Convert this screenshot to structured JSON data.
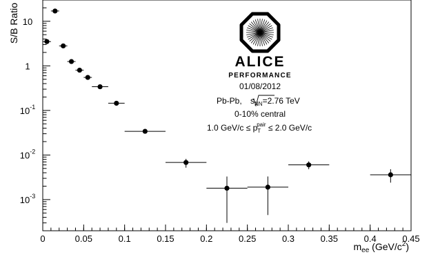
{
  "chart_data": {
    "type": "scatter",
    "ylabel": "S/B Ratio",
    "xlabel": {
      "main": "m",
      "sub": "ee",
      "after": " (GeV/c",
      "sup": "2",
      "close": ")"
    },
    "xlim": [
      0,
      0.45
    ],
    "ylim_log": [
      0.0002,
      30
    ],
    "y_scale": "log",
    "grid": false,
    "x_ticks": [
      {
        "v": 0,
        "label": "0"
      },
      {
        "v": 0.05,
        "label": "0.05"
      },
      {
        "v": 0.1,
        "label": "0.1"
      },
      {
        "v": 0.15,
        "label": "0.15"
      },
      {
        "v": 0.2,
        "label": "0.2"
      },
      {
        "v": 0.25,
        "label": "0.25"
      },
      {
        "v": 0.3,
        "label": "0.3"
      },
      {
        "v": 0.35,
        "label": "0.35"
      },
      {
        "v": 0.4,
        "label": "0.4"
      },
      {
        "v": 0.45,
        "label": "0.45"
      }
    ],
    "y_ticks": [
      {
        "v": 10,
        "base": "10",
        "exp": ""
      },
      {
        "v": 1,
        "base": "1",
        "exp": ""
      },
      {
        "v": 0.1,
        "base": "10",
        "exp": "-1"
      },
      {
        "v": 0.01,
        "base": "10",
        "exp": "-2"
      },
      {
        "v": 0.001,
        "base": "10",
        "exp": "-3"
      }
    ],
    "points": [
      {
        "x": 0.005,
        "xerr": 0.005,
        "y": 3.5,
        "ylo": 3.2,
        "yhi": 3.8
      },
      {
        "x": 0.015,
        "xerr": 0.005,
        "y": 17,
        "ylo": 16,
        "yhi": 18
      },
      {
        "x": 0.025,
        "xerr": 0.005,
        "y": 2.8,
        "ylo": 2.6,
        "yhi": 3.0
      },
      {
        "x": 0.035,
        "xerr": 0.005,
        "y": 1.25,
        "ylo": 1.15,
        "yhi": 1.35
      },
      {
        "x": 0.045,
        "xerr": 0.005,
        "y": 0.8,
        "ylo": 0.74,
        "yhi": 0.86
      },
      {
        "x": 0.055,
        "xerr": 0.005,
        "y": 0.55,
        "ylo": 0.51,
        "yhi": 0.59
      },
      {
        "x": 0.07,
        "xerr": 0.01,
        "y": 0.34,
        "ylo": 0.32,
        "yhi": 0.36
      },
      {
        "x": 0.09,
        "xerr": 0.01,
        "y": 0.145,
        "ylo": 0.137,
        "yhi": 0.153
      },
      {
        "x": 0.125,
        "xerr": 0.025,
        "y": 0.034,
        "ylo": 0.032,
        "yhi": 0.036
      },
      {
        "x": 0.175,
        "xerr": 0.025,
        "y": 0.0068,
        "ylo": 0.0052,
        "yhi": 0.0082
      },
      {
        "x": 0.225,
        "xerr": 0.025,
        "y": 0.0018,
        "ylo": 0.0003,
        "yhi": 0.0033
      },
      {
        "x": 0.275,
        "xerr": 0.025,
        "y": 0.0019,
        "ylo": 0.00045,
        "yhi": 0.0033
      },
      {
        "x": 0.325,
        "xerr": 0.025,
        "y": 0.006,
        "ylo": 0.0048,
        "yhi": 0.0072
      },
      {
        "x": 0.425,
        "xerr": 0.025,
        "y": 0.0036,
        "ylo": 0.0024,
        "yhi": 0.0048
      }
    ],
    "annotations": {
      "logo_name": "ALICE",
      "logo_sub": "PERFORMANCE",
      "date": "01/08/2012",
      "system": {
        "pre": "Pb-Pb,  ",
        "sqrt": "s",
        "sub": "NN",
        "post": "=2.76 TeV"
      },
      "centrality": "0-10% central",
      "ptcut": {
        "pre": "1.0 GeV/c ≤ p",
        "sub": "T",
        "sup": "pair",
        "post": " ≤ 2.0 GeV/c"
      }
    }
  }
}
